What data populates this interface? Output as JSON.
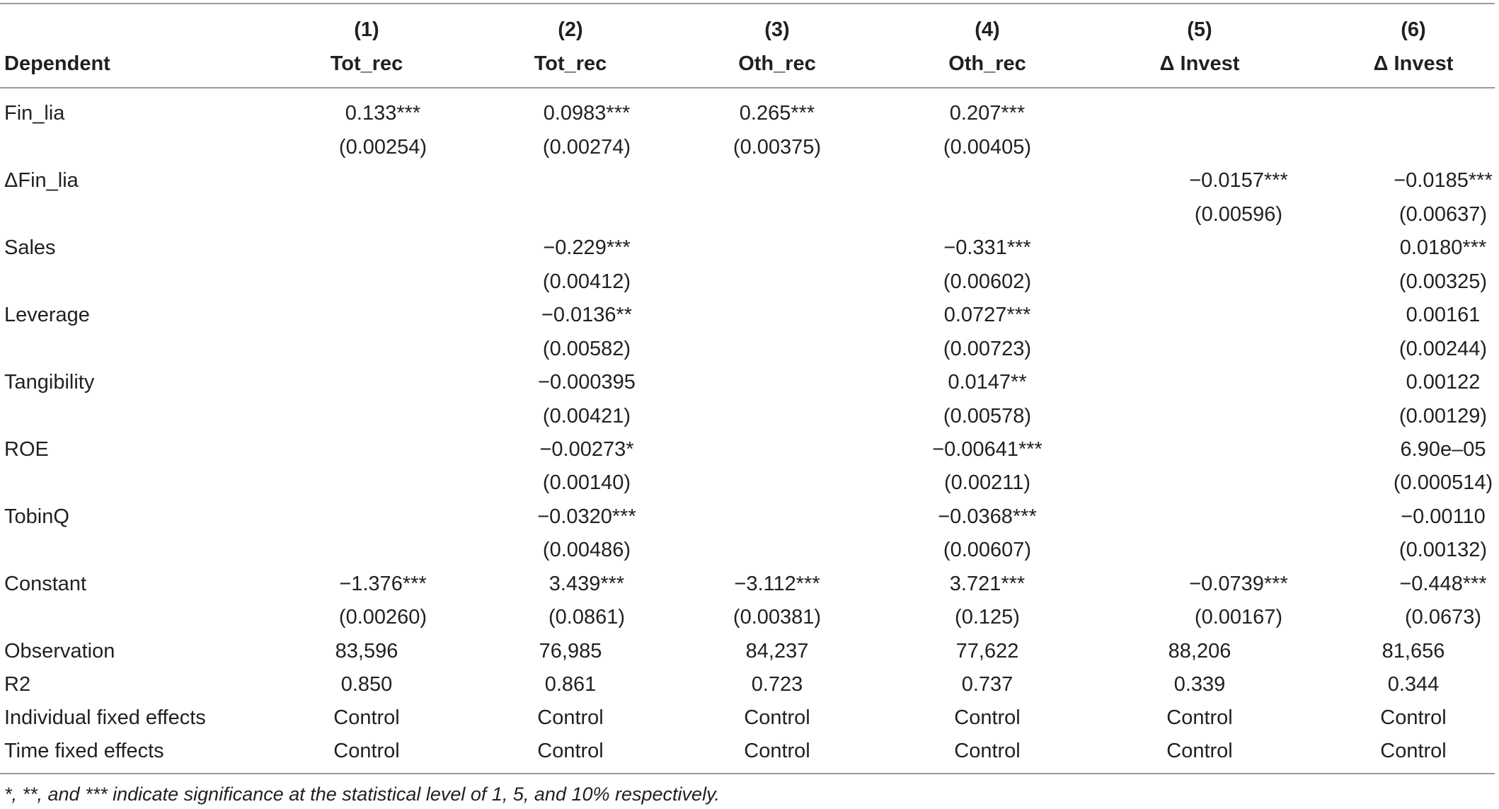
{
  "table": {
    "header_numbers": [
      "(1)",
      "(2)",
      "(3)",
      "(4)",
      "(5)",
      "(6)"
    ],
    "header_label": "Dependent",
    "header_vars": [
      "Tot_rec",
      "Tot_rec",
      "Oth_rec",
      "Oth_rec",
      "Δ Invest",
      "Δ Invest"
    ],
    "rows": [
      {
        "label": "Fin_lia",
        "coef": [
          "0.133***",
          "0.0983***",
          "0.265***",
          "0.207***",
          "",
          ""
        ],
        "se": [
          "(0.00254)",
          "(0.00274)",
          "(0.00375)",
          "(0.00405)",
          "",
          ""
        ]
      },
      {
        "label": "ΔFin_lia",
        "coef": [
          "",
          "",
          "",
          "",
          "−0.0157***",
          "−0.0185***"
        ],
        "se": [
          "",
          "",
          "",
          "",
          "(0.00596)",
          "(0.00637)"
        ]
      },
      {
        "label": "Sales",
        "coef": [
          "",
          "−0.229***",
          "",
          "−0.331***",
          "",
          "0.0180***"
        ],
        "se": [
          "",
          "(0.00412)",
          "",
          "(0.00602)",
          "",
          "(0.00325)"
        ]
      },
      {
        "label": "Leverage",
        "coef": [
          "",
          "−0.0136**",
          "",
          "0.0727***",
          "",
          "0.00161"
        ],
        "se": [
          "",
          "(0.00582)",
          "",
          "(0.00723)",
          "",
          "(0.00244)"
        ]
      },
      {
        "label": "Tangibility",
        "coef": [
          "",
          "−0.000395",
          "",
          "0.0147**",
          "",
          "0.00122"
        ],
        "se": [
          "",
          "(0.00421)",
          "",
          "(0.00578)",
          "",
          "(0.00129)"
        ]
      },
      {
        "label": "ROE",
        "coef": [
          "",
          "−0.00273*",
          "",
          "−0.00641***",
          "",
          "6.90e–05"
        ],
        "se": [
          "",
          "(0.00140)",
          "",
          "(0.00211)",
          "",
          "(0.000514)"
        ]
      },
      {
        "label": "TobinQ",
        "coef": [
          "",
          "−0.0320***",
          "",
          "−0.0368***",
          "",
          "−0.00110"
        ],
        "se": [
          "",
          "(0.00486)",
          "",
          "(0.00607)",
          "",
          "(0.00132)"
        ]
      },
      {
        "label": "Constant",
        "coef": [
          "−1.376***",
          "3.439***",
          "−3.112***",
          "3.721***",
          "−0.0739***",
          "−0.448***"
        ],
        "se": [
          "(0.00260)",
          "(0.0861)",
          "(0.00381)",
          "(0.125)",
          "(0.00167)",
          "(0.0673)"
        ]
      }
    ],
    "stats": [
      {
        "label": "Observation",
        "values": [
          "83,596",
          "76,985",
          "84,237",
          "77,622",
          "88,206",
          "81,656"
        ]
      },
      {
        "label": "R2",
        "values": [
          "0.850",
          "0.861",
          "0.723",
          "0.737",
          "0.339",
          "0.344"
        ]
      },
      {
        "label": "Individual fixed effects",
        "values": [
          "Control",
          "Control",
          "Control",
          "Control",
          "Control",
          "Control"
        ]
      },
      {
        "label": "Time fixed effects",
        "values": [
          "Control",
          "Control",
          "Control",
          "Control",
          "Control",
          "Control"
        ]
      }
    ],
    "footnote": "*, **, and *** indicate significance at the statistical level of 1, 5, and 10% respectively."
  }
}
